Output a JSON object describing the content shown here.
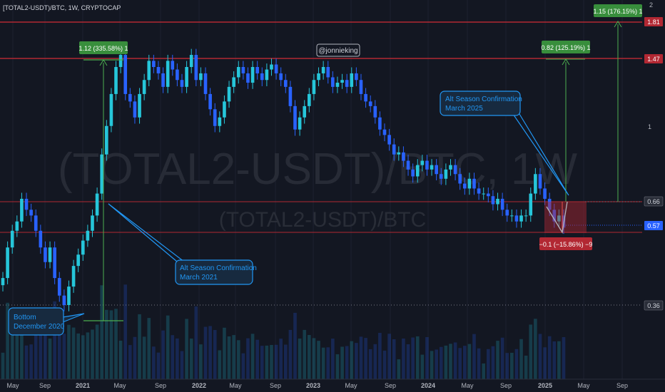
{
  "header": {
    "symbol": "[TOTAL2-USDT)/BTC, 1W, CRYPTOCAP"
  },
  "watermark": {
    "big": "(TOTAL2-USDT)/BTC, 1W",
    "small": "(TOTAL2-USDT)/BTC"
  },
  "handle": "@jonnieking",
  "annotations": {
    "bottom": {
      "line1": "Bottom",
      "line2": "December 2020"
    },
    "alt2021": {
      "line1": "Alt Season Confirmation",
      "line2": "March 2021"
    },
    "alt2025": {
      "line1": "Alt Season Confirmation",
      "line2": "March 2025"
    }
  },
  "measures": {
    "m2021": "1.12 (335.58%) 1",
    "m2025a": "0.82 (125.19%) 1",
    "m2025b": "1.15 (176.15%) 1",
    "drop": "−0.1 (−15.86%) −9"
  },
  "price_axis": {
    "ticks": [
      "2",
      "1"
    ],
    "labels": [
      {
        "text": "1.81",
        "color": "#b22833"
      },
      {
        "text": "1.47",
        "color": "#b22833"
      },
      {
        "text": "0.66",
        "color": "#2a2e39"
      },
      {
        "text": "0.57",
        "color": "#2962ff"
      },
      {
        "text": "0.36",
        "color": "#2a2e39"
      }
    ]
  },
  "time_axis": [
    "May",
    "Sep",
    "2021",
    "May",
    "Sep",
    "2022",
    "May",
    "Sep",
    "2023",
    "May",
    "Sep",
    "2024",
    "May",
    "Sep",
    "2025",
    "May",
    "Sep"
  ],
  "colors": {
    "up": "#26c6da",
    "down": "#2962ff",
    "resistance": "#b22833",
    "measure": "#4caf50",
    "callout": "#2196f3"
  },
  "chart_data": {
    "type": "candlestick",
    "title": "[TOTAL2-USDT)/BTC, 1W, CRYPTOCAP",
    "scale": "log",
    "ylim": [
      0.3,
      2.05
    ],
    "levels": [
      1.81,
      1.47,
      0.66,
      0.57,
      0.36
    ],
    "series": [
      {
        "values": [
          0.42,
          0.5,
          0.55,
          0.58,
          0.66,
          0.62,
          0.6,
          0.55,
          0.5,
          0.46,
          0.5,
          0.42,
          0.38,
          0.36,
          0.4,
          0.45,
          0.48,
          0.52,
          0.55,
          0.6,
          0.68,
          0.85,
          1.0,
          1.2,
          1.4,
          1.5,
          1.2,
          1.15,
          1.05,
          1.2,
          1.3,
          1.45,
          1.4,
          1.35,
          1.25,
          1.45,
          1.38,
          1.3,
          1.25,
          1.4,
          1.5,
          1.3,
          1.35,
          1.2,
          1.1,
          1.0,
          1.05,
          1.15,
          1.25,
          1.32,
          1.4,
          1.35,
          1.28,
          1.4,
          1.35,
          1.3,
          1.38,
          1.42,
          1.35,
          1.3,
          1.25,
          1.12,
          0.98,
          1.05,
          1.12,
          1.2,
          1.3,
          1.35,
          1.4,
          1.32,
          1.25,
          1.28,
          1.3,
          1.25,
          1.35,
          1.3,
          1.2,
          1.15,
          1.12,
          1.05,
          0.98,
          0.95,
          0.9,
          0.85,
          0.86,
          0.82,
          0.78,
          0.75,
          0.8,
          0.82,
          0.78,
          0.8,
          0.76,
          0.74,
          0.78,
          0.8,
          0.76,
          0.72,
          0.7,
          0.74,
          0.7,
          0.68,
          0.68,
          0.67,
          0.64,
          0.66,
          0.62,
          0.6,
          0.6,
          0.58,
          0.6,
          0.6,
          0.68,
          0.76,
          0.7,
          0.66,
          0.62,
          0.58,
          0.6,
          0.56
        ]
      }
    ]
  }
}
